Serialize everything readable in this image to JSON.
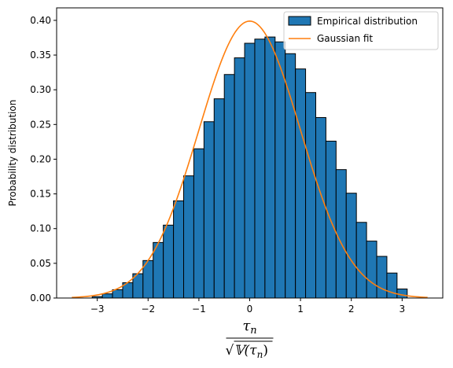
{
  "chart_data": {
    "type": "bar",
    "title": "",
    "xlabel": {
      "numerator": "τ",
      "numerator_sub": "n",
      "denominator_prefix": "√",
      "denominator_body": "𝕍(τ",
      "denominator_sub": "n",
      "denominator_close": ")"
    },
    "ylabel": "Probability distribution",
    "xlim": [
      -3.8,
      3.8
    ],
    "ylim": [
      0,
      0.418
    ],
    "xticks": [
      -3,
      -2,
      -1,
      0,
      1,
      2,
      3
    ],
    "xtick_labels": [
      "−3",
      "−2",
      "−1",
      "0",
      "1",
      "2",
      "3"
    ],
    "yticks": [
      0.0,
      0.05,
      0.1,
      0.15,
      0.2,
      0.25,
      0.3,
      0.35,
      0.4
    ],
    "ytick_labels": [
      "0.00",
      "0.05",
      "0.10",
      "0.15",
      "0.20",
      "0.25",
      "0.30",
      "0.35",
      "0.40"
    ],
    "grid": false,
    "legend_position": "top-right",
    "series": [
      {
        "name": "Empirical distribution",
        "kind": "histogram",
        "color": "#1f77b4",
        "edgecolor": "#000000",
        "bin_edges": [
          -3.1,
          -2.9,
          -2.7,
          -2.5,
          -2.3,
          -2.1,
          -1.9,
          -1.7,
          -1.5,
          -1.3,
          -1.1,
          -0.9,
          -0.7,
          -0.5,
          -0.3,
          -0.1,
          0.1,
          0.3,
          0.5,
          0.7,
          0.9,
          1.1,
          1.3,
          1.5,
          1.7,
          1.9,
          2.1,
          2.3,
          2.5,
          2.7,
          2.9,
          3.1
        ],
        "values": [
          0.002,
          0.006,
          0.012,
          0.022,
          0.035,
          0.054,
          0.08,
          0.105,
          0.14,
          0.176,
          0.215,
          0.254,
          0.287,
          0.322,
          0.346,
          0.367,
          0.373,
          0.376,
          0.369,
          0.352,
          0.33,
          0.296,
          0.26,
          0.226,
          0.185,
          0.151,
          0.109,
          0.082,
          0.06,
          0.036,
          0.013
        ]
      },
      {
        "name": "Gaussian fit",
        "kind": "line",
        "color": "#ff7f0e",
        "mean": 0,
        "std": 1,
        "x_range": [
          -3.5,
          3.5
        ]
      }
    ]
  }
}
